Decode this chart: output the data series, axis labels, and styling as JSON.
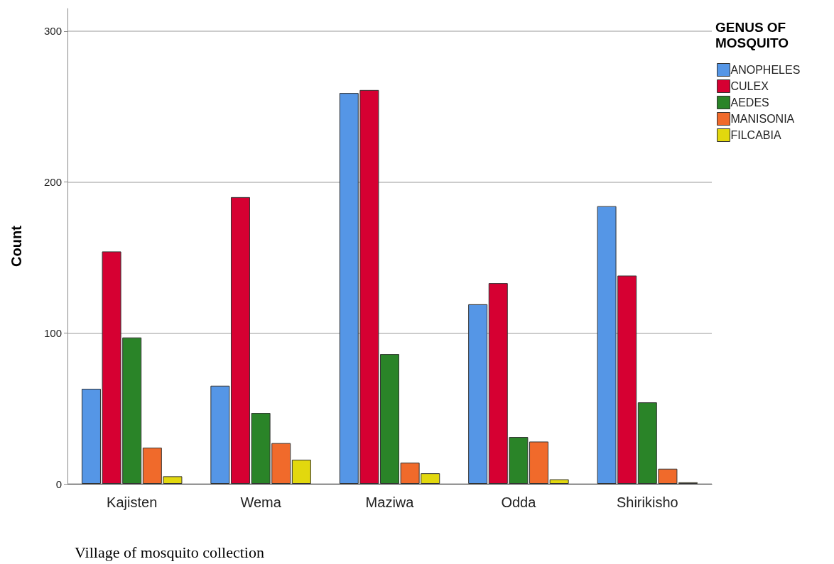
{
  "chart_data": {
    "type": "bar",
    "ylabel": "Count",
    "xlabel": "Village of mosquito collection",
    "legend_title": "GENUS OF MOSQUITO",
    "categories": [
      "Kajisten",
      "Wema",
      "Maziwa",
      "Odda",
      "Shirikisho"
    ],
    "series": [
      {
        "name": "ANOPHELES",
        "color": "#5596e6",
        "values": [
          63,
          65,
          259,
          119,
          184
        ]
      },
      {
        "name": "CULEX",
        "color": "#d60032",
        "values": [
          154,
          190,
          261,
          133,
          138
        ]
      },
      {
        "name": "AEDES",
        "color": "#2a8428",
        "values": [
          97,
          47,
          86,
          31,
          54
        ]
      },
      {
        "name": "MANISONIA",
        "color": "#f06a2b",
        "values": [
          24,
          27,
          14,
          28,
          10
        ]
      },
      {
        "name": "FILCABIA",
        "color": "#e2d80e",
        "values": [
          5,
          16,
          7,
          3,
          1
        ]
      }
    ],
    "ylim": [
      0,
      315
    ],
    "yticks": [
      0,
      100,
      200,
      300
    ],
    "grid": "y",
    "legend": "top right"
  }
}
